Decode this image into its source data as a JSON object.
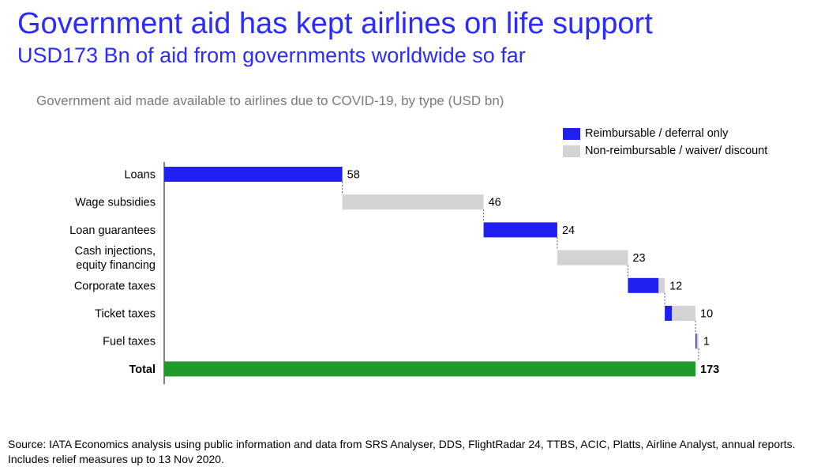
{
  "header": {
    "title": "Government aid has kept airlines on life support",
    "subtitle": "USD173 Bn of aid from governments worldwide so far"
  },
  "chart_data": {
    "type": "bar",
    "subtype": "waterfall-stacked-horizontal",
    "title": "Government aid made available to airlines due to COVID-19, by type (USD bn)",
    "xlim": [
      0,
      173
    ],
    "grid": false,
    "legend_position": "top-right",
    "categories": [
      [
        "Loans"
      ],
      [
        "Wage subsidies"
      ],
      [
        "Loan guarantees"
      ],
      [
        "Cash injections,",
        "equity financing"
      ],
      [
        "Corporate taxes"
      ],
      [
        "Ticket taxes"
      ],
      [
        "Fuel taxes"
      ],
      [
        "Total"
      ]
    ],
    "series": [
      {
        "name": "Reimbursable / deferral only",
        "color": "#2020f0",
        "values": [
          58,
          0,
          24,
          0,
          10,
          2.3,
          0.4,
          null
        ]
      },
      {
        "name": "Non-reimbursable / waiver/ discount",
        "color": "#d3d3d6",
        "values": [
          0,
          46,
          0,
          23,
          2,
          7.7,
          0.6,
          null
        ]
      }
    ],
    "totals": [
      58,
      46,
      24,
      23,
      12,
      10,
      1,
      173
    ],
    "total_color": "#1f9a2b"
  },
  "source": "Source: IATA Economics analysis using public information and data from SRS Analyser, DDS, FlightRadar 24, TTBS, ACIC, Platts, Airline Analyst, annual reports. Includes relief measures up to 13 Nov 2020."
}
